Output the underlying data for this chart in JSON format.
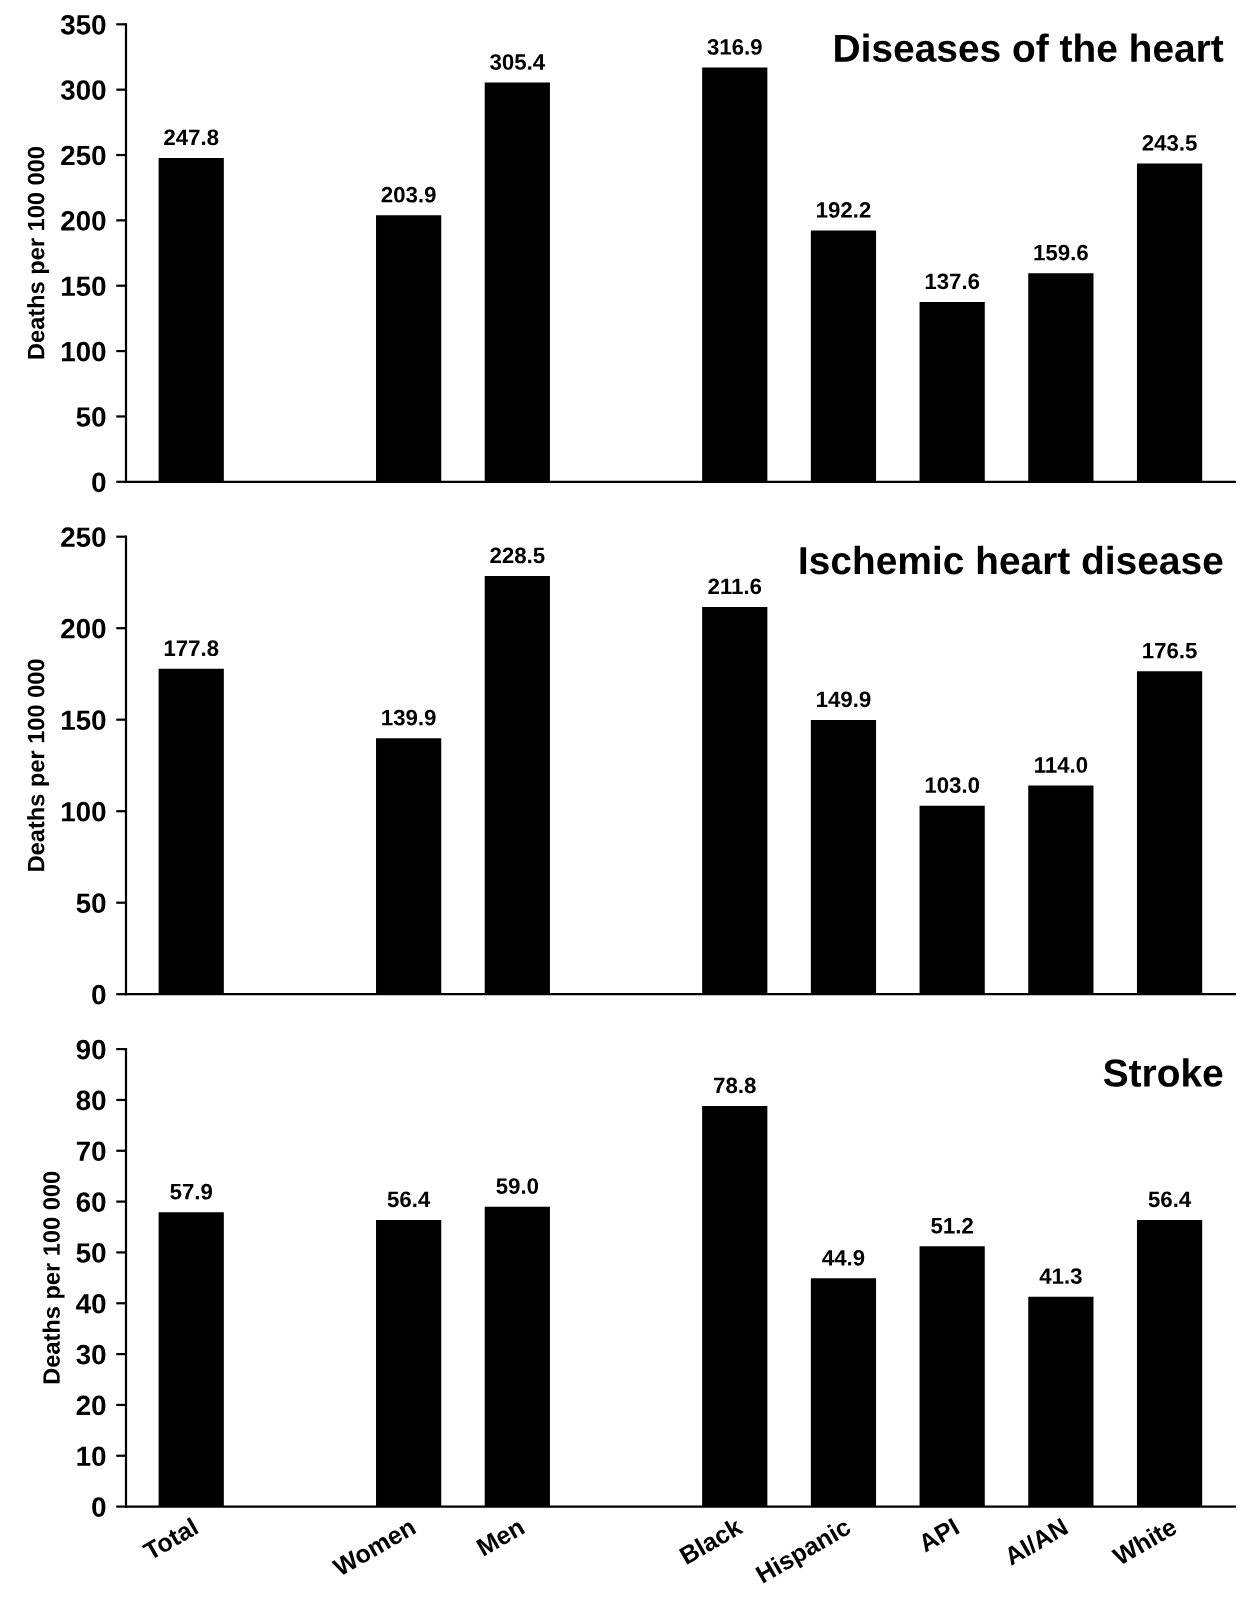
{
  "chart_data": [
    {
      "type": "bar",
      "title": "Diseases of the heart",
      "ylabel": "Deaths per 100 000",
      "categories": [
        null,
        null,
        null,
        null,
        null,
        null,
        null,
        null,
        null,
        null
      ],
      "values": [
        247.8,
        null,
        203.9,
        305.4,
        null,
        316.9,
        192.2,
        137.6,
        159.6,
        243.5
      ],
      "color": "#000000",
      "ylim": [
        0,
        350
      ],
      "yticks": [
        0,
        50,
        100,
        150,
        200,
        250,
        300,
        350
      ],
      "data_labels": true,
      "tick_labels": "y",
      "grid": false
    },
    {
      "type": "bar",
      "title": "Ischemic heart disease",
      "ylabel": "Deaths per 100 000",
      "categories": [
        null,
        null,
        null,
        null,
        null,
        null,
        null,
        null,
        null,
        null
      ],
      "values": [
        177.8,
        null,
        139.9,
        228.5,
        null,
        211.6,
        149.9,
        103.0,
        114.0,
        176.5
      ],
      "value_labels": [
        "177.8",
        null,
        "139.9",
        "228.5",
        null,
        "211.6",
        "149.9",
        "103.0",
        "114.0",
        "176.5"
      ],
      "color": "#000000",
      "ylim": [
        0,
        250
      ],
      "yticks": [
        0,
        50,
        100,
        150,
        200,
        250
      ],
      "tick_labels": "y",
      "grid": false
    },
    {
      "type": "bar",
      "title": "Stroke",
      "ylabel": "Deaths per 100 000",
      "categories": [
        "Total",
        null,
        "Women",
        "Men",
        null,
        "Black",
        "Hispanic",
        "API",
        "AI/AN",
        "White"
      ],
      "values": [
        57.9,
        null,
        56.4,
        59.0,
        null,
        78.8,
        44.9,
        51.2,
        41.3,
        56.4
      ],
      "value_labels": [
        "57.9",
        null,
        "56.4",
        "59.0",
        null,
        "78.8",
        "44.9",
        "51.2",
        "41.3",
        "56.4"
      ],
      "color": "#000000",
      "ylim": [
        0,
        90
      ],
      "yticks": [
        0,
        10,
        20,
        30,
        40,
        50,
        60,
        70,
        80,
        90
      ],
      "grid": false
    }
  ]
}
